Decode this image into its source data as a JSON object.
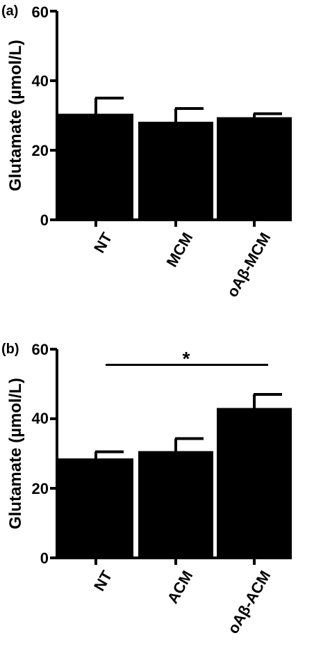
{
  "chart_data": [
    {
      "type": "bar",
      "panel_label": "(a)",
      "ylabel": "Glutamate (µmol/L)",
      "categories": [
        "NT",
        "MCM",
        "oAβ-MCM"
      ],
      "values": [
        30.5,
        28.2,
        29.5
      ],
      "errors": [
        4.5,
        3.8,
        1.0
      ],
      "ylim": [
        0,
        60
      ],
      "yticks": [
        "0",
        "20",
        "40",
        "60"
      ],
      "annotation": "",
      "bar_color": "#000000"
    },
    {
      "type": "bar",
      "panel_label": "(b)",
      "ylabel": "Glutamate (µmol/L)",
      "categories": [
        "NT",
        "ACM",
        "oAβ-ACM"
      ],
      "values": [
        28.6,
        30.7,
        43.1
      ],
      "errors": [
        1.9,
        3.6,
        3.9
      ],
      "ylim": [
        0,
        60
      ],
      "yticks": [
        "0",
        "20",
        "40",
        "60"
      ],
      "annotation": "*",
      "bar_color": "#000000"
    }
  ]
}
